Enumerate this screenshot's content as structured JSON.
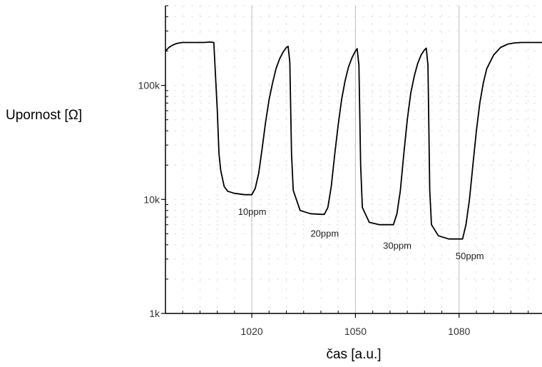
{
  "chart_data": {
    "type": "line",
    "title": "",
    "xlabel": "čas [a.u.]",
    "ylabel": "Upornost [Ω]",
    "xlim": [
      995,
      1104
    ],
    "ylim": [
      1000,
      500000
    ],
    "yscale": "log",
    "grid": true,
    "legend": "none",
    "x_ticks": [
      1020,
      1050,
      1080
    ],
    "x_tick_labels": [
      "1020",
      "1050",
      "1080"
    ],
    "y_ticks": [
      1000,
      10000,
      100000
    ],
    "y_tick_labels": [
      "1k",
      "10k",
      "100k"
    ],
    "series": [
      {
        "name": "",
        "color": "#000000",
        "x": [
          995,
          996,
          997,
          998,
          999,
          1000,
          1002,
          1004,
          1006,
          1008,
          1009,
          1010,
          1010.5,
          1011,
          1012,
          1013,
          1015,
          1018,
          1019,
          1020,
          1021,
          1022,
          1023,
          1024,
          1025,
          1026,
          1027,
          1028,
          1029,
          1030,
          1030.5,
          1031,
          1031.5,
          1032,
          1034,
          1037,
          1040,
          1041,
          1042,
          1043,
          1044,
          1045,
          1046,
          1047,
          1048,
          1049,
          1050,
          1050.5,
          1051,
          1051.5,
          1052,
          1054,
          1057,
          1060,
          1061,
          1062,
          1063,
          1064,
          1065,
          1066,
          1067,
          1068,
          1069,
          1070,
          1070.5,
          1071,
          1071.5,
          1072,
          1074,
          1077,
          1080,
          1081,
          1082,
          1083,
          1084,
          1085,
          1086,
          1087,
          1088,
          1090,
          1092,
          1094,
          1096,
          1098,
          1100,
          1102,
          1104
        ],
        "y": [
          200000,
          215000,
          225000,
          232000,
          236000,
          238000,
          238000,
          238000,
          238000,
          240000,
          238000,
          60000,
          25000,
          18000,
          13000,
          11800,
          11300,
          11000,
          11000,
          11000,
          12500,
          17000,
          28000,
          48000,
          75000,
          105000,
          140000,
          170000,
          195000,
          215000,
          220000,
          160000,
          25000,
          12000,
          8000,
          7500,
          7400,
          7400,
          8500,
          13000,
          25000,
          45000,
          75000,
          110000,
          145000,
          175000,
          200000,
          210000,
          150000,
          20000,
          8500,
          6300,
          6000,
          6000,
          6000,
          7500,
          12000,
          25000,
          50000,
          85000,
          120000,
          155000,
          185000,
          205000,
          212000,
          150000,
          12000,
          6000,
          4800,
          4500,
          4500,
          4500,
          6000,
          10000,
          20000,
          40000,
          70000,
          105000,
          140000,
          185000,
          215000,
          230000,
          236000,
          238000,
          238000,
          238000,
          238000
        ]
      }
    ],
    "annotations": [
      {
        "text": "10ppm",
        "x": 1016,
        "y": 7300
      },
      {
        "text": "20ppm",
        "x": 1037,
        "y": 4700
      },
      {
        "text": "30ppm",
        "x": 1058,
        "y": 3700
      },
      {
        "text": "50ppm",
        "x": 1079,
        "y": 3000
      }
    ]
  }
}
